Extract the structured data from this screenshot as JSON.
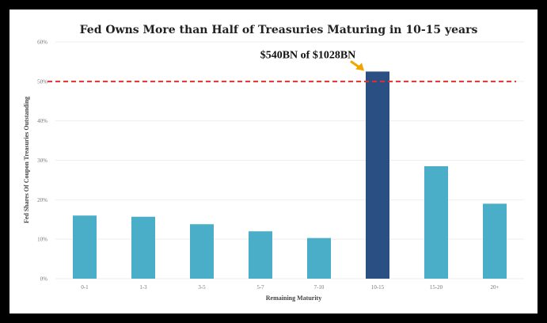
{
  "chart_data": {
    "type": "bar",
    "title": "Fed Owns More than Half of Treasuries Maturing in 10-15 years",
    "xlabel": "Remaining Maturity",
    "ylabel": "Fed Shares Of Coupon Treasuries Outstanding",
    "categories": [
      "0-1",
      "1-3",
      "3-5",
      "5-7",
      "7-10",
      "10-15",
      "15-20",
      "20+"
    ],
    "values": [
      16,
      15.7,
      13.8,
      12,
      10.3,
      52.5,
      28.5,
      19
    ],
    "y_unit": "%",
    "ylim": [
      0,
      60
    ],
    "yticks": [
      0,
      10,
      20,
      30,
      40,
      50,
      60
    ],
    "ytick_labels": [
      "0%",
      "10%",
      "20%",
      "30%",
      "40%",
      "50%",
      "60%"
    ],
    "grid": true,
    "reference_line": {
      "value": 50,
      "style": "dashed",
      "color": "#e03030"
    },
    "highlight_category": "10-15",
    "annotation": {
      "text": "$540BN of $1028BN",
      "target": "10-15",
      "arrow_color": "#f0a500"
    },
    "colors": {
      "bar": "#4aaec8",
      "highlight": "#2a4f82",
      "reference": "#e03030",
      "grid": "#eeeeee"
    }
  }
}
